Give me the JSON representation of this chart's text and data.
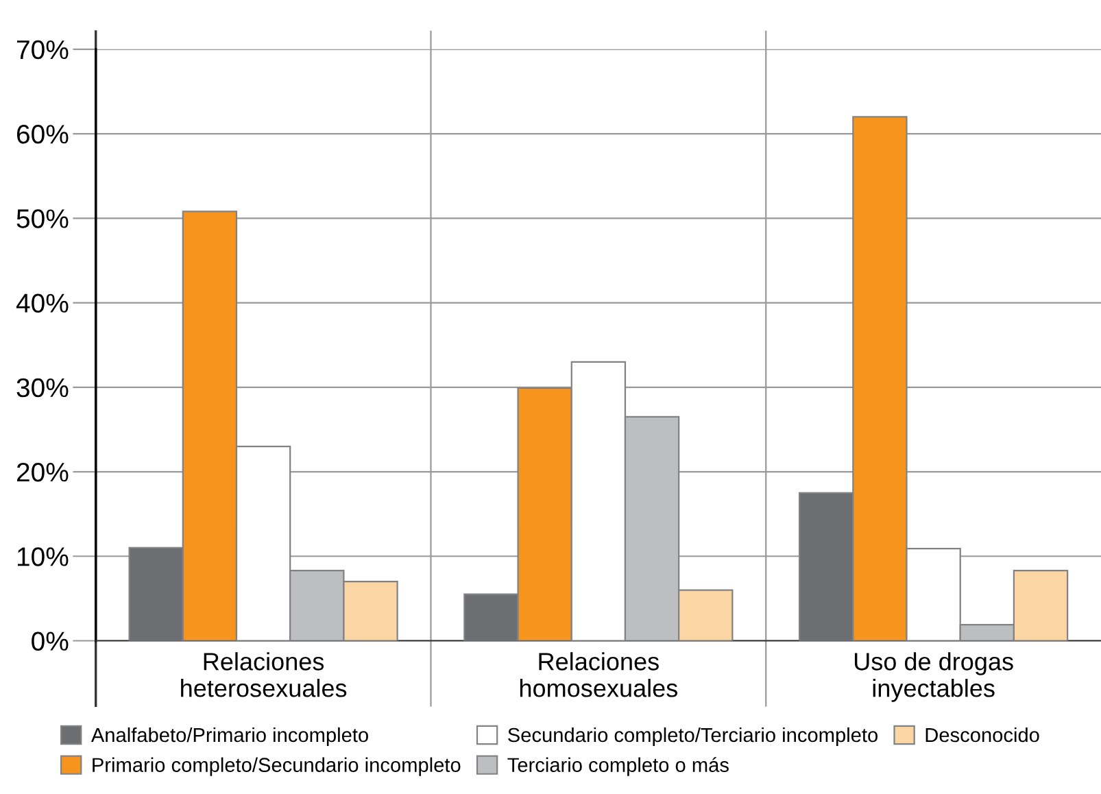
{
  "chart_data": {
    "type": "bar",
    "categories": [
      "Relaciones\nheterosexuales",
      "Relaciones\nhomosexuales",
      "Uso de drogas\ninyectables"
    ],
    "series": [
      {
        "name": "Analfabeto/Primario incompleto",
        "color": "#6d6e71",
        "values": [
          11.0,
          5.5,
          17.5
        ]
      },
      {
        "name": "Primario completo/Secundario incompleto",
        "color": "#f7941d",
        "values": [
          50.8,
          29.9,
          62.0
        ]
      },
      {
        "name": "Secundario completo/Terciario incompleto",
        "color": "#ffffff",
        "values": [
          23.0,
          33.0,
          10.9
        ]
      },
      {
        "name": "Terciario completo o más",
        "color": "#bcbec0",
        "values": [
          8.3,
          26.5,
          1.9
        ]
      },
      {
        "name": "Desconocido",
        "color": "#fcd5a5",
        "values": [
          7.0,
          6.0,
          8.3
        ]
      }
    ],
    "ylim": [
      0,
      70
    ],
    "yticks": [
      {
        "value": 0,
        "label": "0%"
      },
      {
        "value": 10,
        "label": "10%"
      },
      {
        "value": 20,
        "label": "20%"
      },
      {
        "value": 30,
        "label": "30%"
      },
      {
        "value": 40,
        "label": "40%"
      },
      {
        "value": 50,
        "label": "50%"
      },
      {
        "value": 60,
        "label": "60%"
      },
      {
        "value": 70,
        "label": "70%"
      }
    ],
    "grid": "y",
    "legend": "bottom"
  }
}
